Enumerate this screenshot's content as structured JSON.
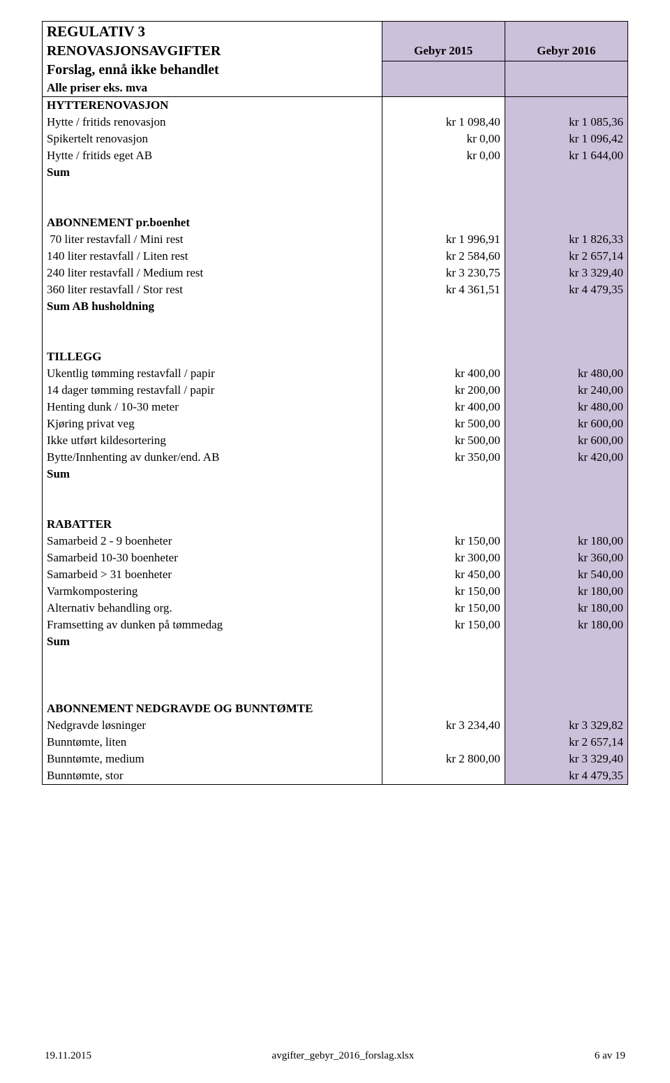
{
  "header": {
    "title": "REGULATIV 3",
    "subtitle": "RENOVASJONSAVGIFTER",
    "col1": "Gebyr 2015",
    "col2": "Gebyr 2016",
    "line3": "Forslag, ennå ikke behandlet",
    "line4": "Alle priser eks. mva"
  },
  "sections": {
    "hytte": {
      "heading": "HYTTERENOVASJON",
      "rows": [
        {
          "label": "Hytte / fritids renovasjon",
          "v1": "kr 1 098,40",
          "v2": "kr 1 085,36"
        },
        {
          "label": "Spikertelt renovasjon",
          "v1": "kr 0,00",
          "v2": "kr 1 096,42"
        },
        {
          "label": "Hytte / fritids eget AB",
          "v1": "kr 0,00",
          "v2": "kr 1 644,00"
        }
      ],
      "sum": "Sum"
    },
    "abonnement": {
      "heading": "ABONNEMENT pr.boenhet",
      "rows": [
        {
          "label": " 70 liter restavfall / Mini rest",
          "v1": "kr 1 996,91",
          "v2": "kr 1 826,33"
        },
        {
          "label": "140 liter restavfall / Liten rest",
          "v1": "kr 2 584,60",
          "v2": "kr 2 657,14"
        },
        {
          "label": "240 liter restavfall / Medium rest",
          "v1": "kr 3 230,75",
          "v2": "kr 3 329,40"
        },
        {
          "label": "360 liter restavfall / Stor rest",
          "v1": "kr 4 361,51",
          "v2": "kr 4 479,35"
        }
      ],
      "sum": "Sum AB husholdning"
    },
    "tillegg": {
      "heading": "TILLEGG",
      "rows": [
        {
          "label": "Ukentlig tømming restavfall / papir",
          "v1": "kr 400,00",
          "v2": "kr 480,00"
        },
        {
          "label": "14 dager tømming restavfall / papir",
          "v1": "kr 200,00",
          "v2": "kr 240,00"
        },
        {
          "label": "Henting dunk / 10-30 meter",
          "v1": "kr 400,00",
          "v2": "kr 480,00"
        },
        {
          "label": "Kjøring privat veg",
          "v1": "kr 500,00",
          "v2": "kr 600,00"
        },
        {
          "label": "Ikke utført kildesortering",
          "v1": "kr 500,00",
          "v2": "kr 600,00"
        },
        {
          "label": "Bytte/Innhenting av dunker/end. AB",
          "v1": "kr 350,00",
          "v2": "kr 420,00"
        }
      ],
      "sum": "Sum"
    },
    "rabatter": {
      "heading": "RABATTER",
      "rows": [
        {
          "label": "Samarbeid  2 - 9  boenheter",
          "v1": "kr 150,00",
          "v2": "kr 180,00"
        },
        {
          "label": "Samarbeid 10-30 boenheter",
          "v1": "kr 300,00",
          "v2": "kr 360,00"
        },
        {
          "label": "Samarbeid   > 31 boenheter",
          "v1": "kr 450,00",
          "v2": "kr 540,00"
        },
        {
          "label": "Varmkompostering",
          "v1": "kr 150,00",
          "v2": "kr 180,00"
        },
        {
          "label": "Alternativ behandling org.",
          "v1": "kr 150,00",
          "v2": "kr 180,00"
        },
        {
          "label": "Framsetting av dunken på tømmedag",
          "v1": "kr 150,00",
          "v2": "kr 180,00"
        }
      ],
      "sum": "Sum"
    },
    "nedgravde": {
      "heading": "ABONNEMENT NEDGRAVDE OG BUNNTØMTE",
      "rows": [
        {
          "label": "Nedgravde løsninger",
          "v1": "kr 3 234,40",
          "v2": "kr 3 329,82"
        },
        {
          "label": "Bunntømte, liten",
          "v1": "",
          "v2": "kr 2 657,14"
        },
        {
          "label": "Bunntømte, medium",
          "v1": "kr 2 800,00",
          "v2": "kr 3 329,40"
        },
        {
          "label": "Bunntømte, stor",
          "v1": "",
          "v2": "kr 4 479,35"
        }
      ]
    }
  },
  "footer": {
    "left": "19.11.2015",
    "center": "avgifter_gebyr_2016_forslag.xlsx",
    "right": "6 av 19"
  },
  "colors": {
    "pink": "#ccc0da",
    "border": "#000000",
    "text": "#000000",
    "background": "#ffffff"
  }
}
